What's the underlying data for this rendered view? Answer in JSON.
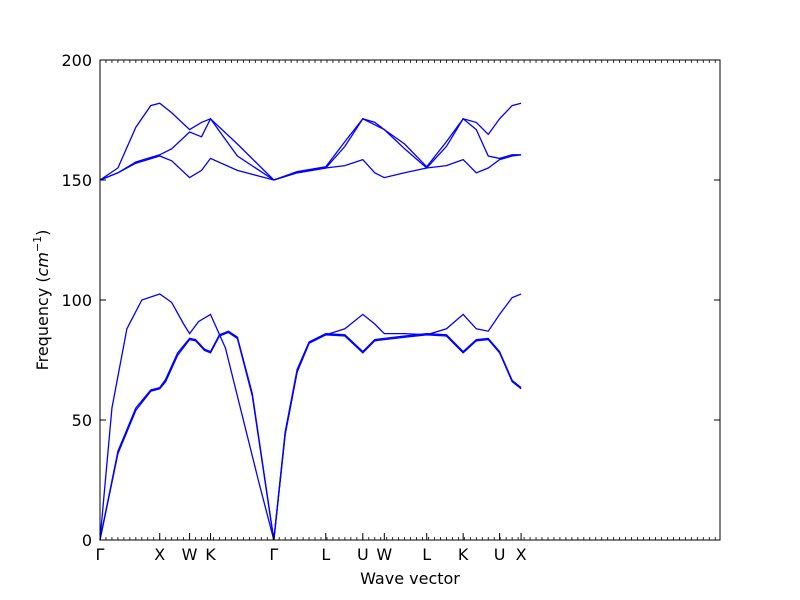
{
  "chart_data": {
    "type": "line",
    "title": "",
    "xlabel": "Wave vector",
    "ylabel_text": "Frequency (",
    "ylabel_unit": "cm",
    "ylabel_exp": "−1",
    "ylabel_close": ")",
    "ylim": [
      0,
      200
    ],
    "yticks": [
      0,
      50,
      100,
      150,
      200
    ],
    "xlim": [
      0,
      10.38
    ],
    "grid": false,
    "legend": "none",
    "line_color": "#0000ff",
    "kpoints": [
      {
        "label": "Γ",
        "x": 0.0
      },
      {
        "label": "X",
        "x": 1.0
      },
      {
        "label": "W",
        "x": 1.5
      },
      {
        "label": "K",
        "x": 1.85
      },
      {
        "label": "Γ",
        "x": 2.91
      },
      {
        "label": "L",
        "x": 3.78
      },
      {
        "label": "U",
        "x": 4.4
      },
      {
        "label": "W",
        "x": 4.76
      },
      {
        "label": "L",
        "x": 5.47
      },
      {
        "label": "K",
        "x": 6.08
      },
      {
        "label": "U",
        "x": 6.69
      },
      {
        "label": "X",
        "x": 7.05
      }
    ],
    "series": [
      {
        "values": [
          [
            0,
            0
          ],
          [
            0.3,
            36
          ],
          [
            0.6,
            54
          ],
          [
            0.85,
            62
          ],
          [
            1.0,
            63
          ],
          [
            1.1,
            66
          ],
          [
            1.3,
            77
          ],
          [
            1.5,
            83.5
          ],
          [
            1.6,
            83
          ],
          [
            1.75,
            79
          ],
          [
            1.85,
            78
          ],
          [
            2.0,
            85
          ],
          [
            2.15,
            86.5
          ],
          [
            2.3,
            84
          ],
          [
            2.55,
            60
          ],
          [
            2.91,
            0
          ],
          [
            3.1,
            44
          ],
          [
            3.3,
            70
          ],
          [
            3.5,
            82
          ],
          [
            3.78,
            85.5
          ],
          [
            4.1,
            85
          ],
          [
            4.4,
            78
          ],
          [
            4.6,
            83
          ],
          [
            4.76,
            83.5
          ],
          [
            5.1,
            84.5
          ],
          [
            5.47,
            85.5
          ],
          [
            5.8,
            85
          ],
          [
            6.08,
            78
          ],
          [
            6.3,
            83
          ],
          [
            6.5,
            83.5
          ],
          [
            6.69,
            78
          ],
          [
            6.9,
            66
          ],
          [
            7.05,
            63
          ]
        ]
      },
      {
        "values": [
          [
            0,
            0
          ],
          [
            0.3,
            37
          ],
          [
            0.6,
            55
          ],
          [
            0.85,
            62.5
          ],
          [
            1.0,
            63.5
          ],
          [
            1.1,
            67
          ],
          [
            1.3,
            78
          ],
          [
            1.5,
            84
          ],
          [
            1.6,
            83.5
          ],
          [
            1.75,
            79.5
          ],
          [
            1.85,
            78.5
          ],
          [
            2.0,
            85.5
          ],
          [
            2.15,
            87
          ],
          [
            2.3,
            84.5
          ],
          [
            2.55,
            61
          ],
          [
            2.91,
            0
          ],
          [
            3.1,
            45
          ],
          [
            3.3,
            71
          ],
          [
            3.5,
            82.5
          ],
          [
            3.78,
            86
          ],
          [
            4.1,
            85.5
          ],
          [
            4.4,
            78.5
          ],
          [
            4.6,
            83.5
          ],
          [
            4.76,
            84
          ],
          [
            5.1,
            85
          ],
          [
            5.47,
            86
          ],
          [
            5.8,
            85.5
          ],
          [
            6.08,
            78.5
          ],
          [
            6.3,
            83.5
          ],
          [
            6.5,
            84
          ],
          [
            6.69,
            78.5
          ],
          [
            6.9,
            66.5
          ],
          [
            7.05,
            63.5
          ]
        ]
      },
      {
        "values": [
          [
            0,
            0
          ],
          [
            0.2,
            55
          ],
          [
            0.45,
            88
          ],
          [
            0.7,
            100
          ],
          [
            1.0,
            102.5
          ],
          [
            1.2,
            99
          ],
          [
            1.4,
            90
          ],
          [
            1.5,
            86
          ],
          [
            1.65,
            91
          ],
          [
            1.85,
            94
          ],
          [
            2.1,
            80
          ],
          [
            2.4,
            50
          ],
          [
            2.65,
            25
          ],
          [
            2.91,
            0
          ],
          [
            3.1,
            44
          ],
          [
            3.3,
            70
          ],
          [
            3.5,
            82
          ],
          [
            3.78,
            85.5
          ],
          [
            4.1,
            88
          ],
          [
            4.4,
            94
          ],
          [
            4.6,
            90
          ],
          [
            4.76,
            86
          ],
          [
            5.1,
            86
          ],
          [
            5.47,
            85.5
          ],
          [
            5.8,
            88
          ],
          [
            6.08,
            94
          ],
          [
            6.3,
            88
          ],
          [
            6.5,
            87
          ],
          [
            6.69,
            94
          ],
          [
            6.9,
            101
          ],
          [
            7.05,
            102.5
          ]
        ]
      },
      {
        "values": [
          [
            0,
            150
          ],
          [
            0.3,
            153
          ],
          [
            0.6,
            157
          ],
          [
            1.0,
            160
          ],
          [
            1.2,
            158
          ],
          [
            1.5,
            151
          ],
          [
            1.7,
            154
          ],
          [
            1.85,
            159
          ],
          [
            2.3,
            154
          ],
          [
            2.91,
            150
          ],
          [
            3.3,
            153
          ],
          [
            3.78,
            155
          ],
          [
            4.1,
            156
          ],
          [
            4.4,
            158.5
          ],
          [
            4.6,
            153
          ],
          [
            4.76,
            151
          ],
          [
            5.1,
            153
          ],
          [
            5.47,
            155
          ],
          [
            5.8,
            156
          ],
          [
            6.08,
            158.5
          ],
          [
            6.3,
            153
          ],
          [
            6.5,
            155
          ],
          [
            6.69,
            158.5
          ],
          [
            6.9,
            160
          ],
          [
            7.05,
            160.5
          ]
        ]
      },
      {
        "values": [
          [
            0,
            150
          ],
          [
            0.3,
            153
          ],
          [
            0.6,
            157.5
          ],
          [
            1.0,
            160.5
          ],
          [
            1.2,
            163
          ],
          [
            1.5,
            170
          ],
          [
            1.7,
            168
          ],
          [
            1.85,
            175.5
          ],
          [
            2.3,
            165
          ],
          [
            2.91,
            150
          ],
          [
            3.3,
            153.5
          ],
          [
            3.78,
            155.5
          ],
          [
            4.1,
            166
          ],
          [
            4.4,
            175.5
          ],
          [
            4.6,
            174
          ],
          [
            4.76,
            171
          ],
          [
            5.1,
            165
          ],
          [
            5.47,
            155.5
          ],
          [
            5.8,
            166
          ],
          [
            6.08,
            175.5
          ],
          [
            6.3,
            171
          ],
          [
            6.5,
            160
          ],
          [
            6.69,
            159
          ],
          [
            6.9,
            160.5
          ],
          [
            7.05,
            160.5
          ]
        ]
      },
      {
        "values": [
          [
            0,
            150
          ],
          [
            0.3,
            155
          ],
          [
            0.6,
            172
          ],
          [
            0.85,
            181
          ],
          [
            1.0,
            182
          ],
          [
            1.2,
            178
          ],
          [
            1.5,
            171
          ],
          [
            1.7,
            174
          ],
          [
            1.85,
            175.5
          ],
          [
            2.3,
            160
          ],
          [
            2.91,
            150
          ],
          [
            3.3,
            153
          ],
          [
            3.78,
            155
          ],
          [
            4.1,
            164
          ],
          [
            4.4,
            175.5
          ],
          [
            4.6,
            173
          ],
          [
            4.76,
            171
          ],
          [
            5.1,
            163
          ],
          [
            5.47,
            155
          ],
          [
            5.8,
            164
          ],
          [
            6.08,
            175.5
          ],
          [
            6.3,
            174
          ],
          [
            6.5,
            169
          ],
          [
            6.69,
            175.5
          ],
          [
            6.9,
            181
          ],
          [
            7.05,
            182
          ]
        ]
      }
    ]
  }
}
